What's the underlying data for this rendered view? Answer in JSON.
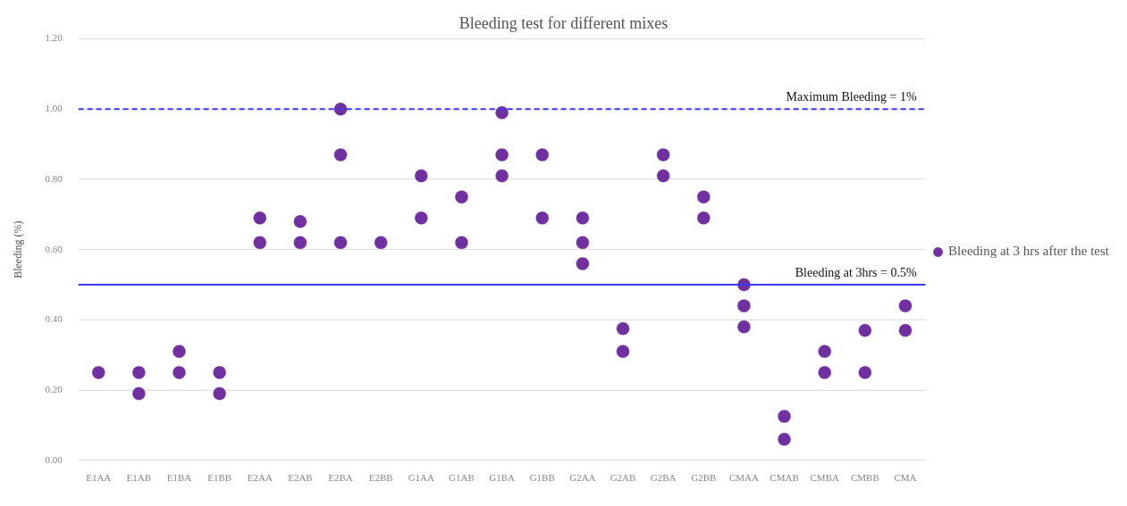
{
  "chart_data": {
    "type": "scatter",
    "title": "Bleeding test for different mixes",
    "ylabel": "Bleeding (%)",
    "categories": [
      "E1AA",
      "E1AB",
      "E1BA",
      "E1BB",
      "E2AA",
      "E2AB",
      "E2BA",
      "E2BB",
      "G1AA",
      "G1AB",
      "G1BA",
      "G1BB",
      "G2AA",
      "G2AB",
      "G2BA",
      "G2BB",
      "CMAA",
      "CMAB",
      "CMBA",
      "CMBB",
      "CMA"
    ],
    "series": [
      {
        "name": "Bleeding at 3 hrs after the test",
        "color": "#7030a0",
        "x": [
          "E1AA",
          "E1AB",
          "E1AB",
          "E1BA",
          "E1BA",
          "E1BB",
          "E1BB",
          "E2AA",
          "E2AA",
          "E2AB",
          "E2AB",
          "E2BA",
          "E2BA",
          "E2BA",
          "E2BB",
          "G1AA",
          "G1AA",
          "G1AB",
          "G1AB",
          "G1BA",
          "G1BA",
          "G1BA",
          "G1BB",
          "G1BB",
          "G2AA",
          "G2AA",
          "G2AA",
          "G2AB",
          "G2AB",
          "G2BA",
          "G2BA",
          "G2BB",
          "G2BB",
          "CMAA",
          "CMAA",
          "CMAA",
          "CMAB",
          "CMAB",
          "CMBA",
          "CMBA",
          "CMBB",
          "CMBB",
          "CMA",
          "CMA"
        ],
        "values": [
          0.25,
          0.25,
          0.19,
          0.31,
          0.25,
          0.25,
          0.19,
          0.69,
          0.62,
          0.68,
          0.62,
          1.0,
          0.87,
          0.62,
          0.62,
          0.81,
          0.69,
          0.75,
          0.62,
          0.99,
          0.87,
          0.81,
          0.87,
          0.69,
          0.69,
          0.62,
          0.56,
          0.375,
          0.31,
          0.87,
          0.81,
          0.75,
          0.69,
          0.5,
          0.44,
          0.38,
          0.125,
          0.06,
          0.31,
          0.25,
          0.37,
          0.25,
          0.44,
          0.37
        ]
      }
    ],
    "ylim": [
      0,
      1.2
    ],
    "yticks": [
      {
        "value": 0,
        "label": "0.00"
      },
      {
        "value": 0.2,
        "label": "0.20"
      },
      {
        "value": 0.4,
        "label": "0.40"
      },
      {
        "value": 0.6,
        "label": "0.60"
      },
      {
        "value": 0.8,
        "label": "0.80"
      },
      {
        "value": 1.0,
        "label": "1.00"
      },
      {
        "value": 1.2,
        "label": "1.20"
      }
    ],
    "ref_lines": [
      {
        "axis": "y",
        "value": 1.0,
        "label": "Maximum Bleeding = 1%",
        "color": "#3b3bf5",
        "line_style": "dashed"
      },
      {
        "axis": "y",
        "value": 0.5,
        "label": "Bleeding at 3hrs = 0.5%",
        "color": "#3b3bf5",
        "line_style": "solid"
      }
    ],
    "grid": "y",
    "legend": "right",
    "marker": "circle"
  }
}
